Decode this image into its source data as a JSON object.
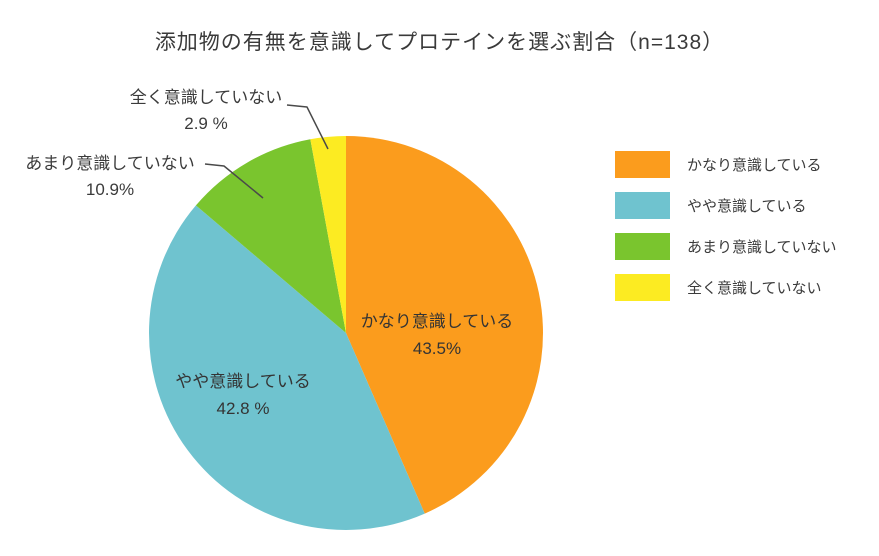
{
  "chart_data": {
    "type": "pie",
    "title": "添加物の有無を意識してプロテインを選ぶ割合（n=138）",
    "unit": "%",
    "legend_position": "right",
    "start_angle": "top, clockwise",
    "slices": [
      {
        "key": "very-conscious",
        "label": "かなり意識している",
        "value": 43.5,
        "display": "43.5%",
        "color": "#FB9C1D",
        "label_placement": "inside"
      },
      {
        "key": "somewhat-conscious",
        "label": "やや意識している",
        "value": 42.8,
        "display": "42.8 %",
        "color": "#6FC3CF",
        "label_placement": "inside"
      },
      {
        "key": "not-very-conscious",
        "label": "あまり意識していない",
        "value": 10.9,
        "display": "10.9%",
        "color": "#7AC52E",
        "label_placement": "outside"
      },
      {
        "key": "not-at-all-conscious",
        "label": "全く意識していない",
        "value": 2.9,
        "display": "2.9 %",
        "color": "#FCEB22",
        "label_placement": "outside"
      }
    ]
  }
}
